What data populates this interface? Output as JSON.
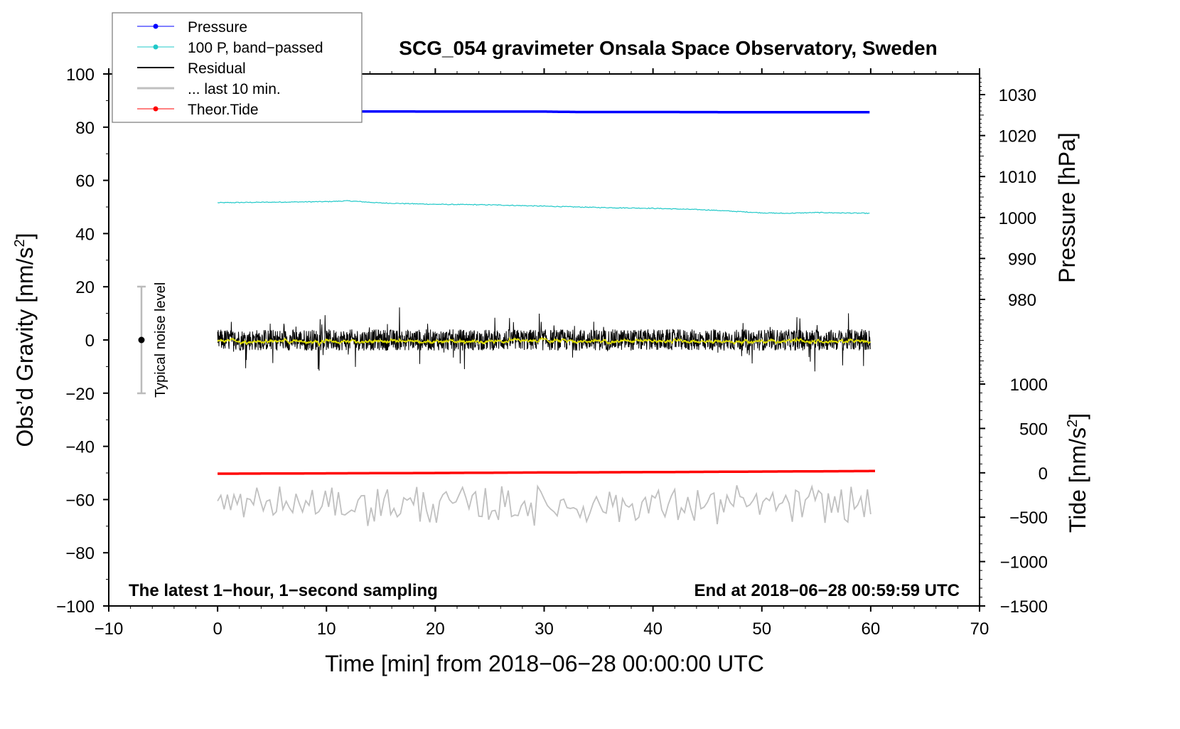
{
  "chart_data": {
    "type": "line",
    "title": "SCG_054 gravimeter Onsala Space Observatory, Sweden",
    "xlabel": "Time [min] from 2018−06−28 00:00:00 UTC",
    "ylabel": "Obs’d Gravity [nm/s",
    "ylabel_sup": "2",
    "ylabel_end": "]",
    "y2label": "Pressure [hPa]",
    "y3label": "Tide [nm/s",
    "y3label_sup": "2",
    "y3label_end": "]",
    "xlim": [
      -10,
      70
    ],
    "ylim": [
      -100,
      100
    ],
    "y2lim_ticks": [
      980,
      1030
    ],
    "y3lim": [
      -1500,
      1000
    ],
    "x_ticks": [
      "−10",
      "0",
      "10",
      "20",
      "30",
      "40",
      "50",
      "60",
      "70"
    ],
    "x_tick_values": [
      -10,
      0,
      10,
      20,
      30,
      40,
      50,
      60,
      70
    ],
    "y_ticks": [
      "100",
      "80",
      "60",
      "40",
      "20",
      "0",
      "−20",
      "−40",
      "−60",
      "−80",
      "−100"
    ],
    "y_tick_values": [
      100,
      80,
      60,
      40,
      20,
      0,
      -20,
      -40,
      -60,
      -80,
      -100
    ],
    "y2_ticks": [
      "1030",
      "1020",
      "1010",
      "1000",
      "990",
      "980"
    ],
    "y2_tick_values": [
      1030,
      1020,
      1010,
      1000,
      990,
      980
    ],
    "y3_ticks": [
      "1000",
      "500",
      "0",
      "−500",
      "−1000",
      "−1500"
    ],
    "y3_tick_values": [
      1000,
      500,
      0,
      -500,
      -1000,
      -1500
    ],
    "annotation_left": "The latest 1−hour, 1−second sampling",
    "annotation_right": "End at 2018−06−28 00:59:59 UTC",
    "noise_label": "Typical noise level",
    "noise_range": [
      -20,
      20
    ],
    "noise_x": -7,
    "legend_position": "top-left",
    "series": [
      {
        "name": "Pressure",
        "axis": "pressure",
        "color": "#0000ff",
        "x": [
          0,
          10,
          20,
          30,
          33,
          40,
          50,
          60
        ],
        "values": [
          1025.9,
          1025.9,
          1025.85,
          1025.85,
          1025.75,
          1025.75,
          1025.7,
          1025.7
        ]
      },
      {
        "name": "100 P, band−passed",
        "axis": "gravity",
        "color": "#20c8c8",
        "x": [
          0,
          5,
          10,
          12,
          15,
          20,
          25,
          30,
          35,
          40,
          45,
          50,
          52,
          55,
          60
        ],
        "values": [
          51.6,
          51.8,
          52.0,
          52.3,
          51.5,
          51.0,
          50.8,
          50.3,
          49.8,
          49.5,
          48.9,
          47.8,
          47.6,
          47.9,
          47.6
        ]
      },
      {
        "name": "Residual",
        "axis": "gravity",
        "color": "#000000",
        "x": [
          0,
          60
        ],
        "values": [
          0,
          0
        ],
        "noise_amplitude": 8
      },
      {
        "name": "... last 10 min.",
        "axis": "gravity",
        "color": "#c0c0c0",
        "x": [
          0,
          60
        ],
        "values": [
          -62,
          -62
        ],
        "noise_amplitude": 6
      },
      {
        "name": "Theor.Tide",
        "axis": "tide",
        "color": "#ff0000",
        "x": [
          0,
          10,
          20,
          30,
          40,
          50,
          60.5
        ],
        "values": [
          -10,
          -6,
          -2,
          4,
          8,
          14,
          20
        ]
      }
    ],
    "smoothed_residual_color": "#e0e000"
  }
}
